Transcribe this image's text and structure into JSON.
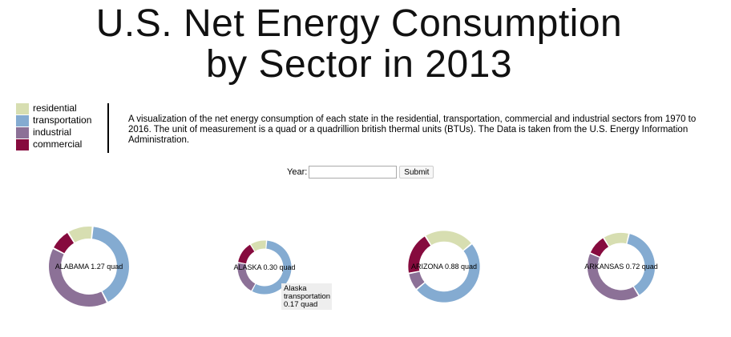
{
  "title": {
    "line1": "U.S. Net Energy Consumption",
    "line2": "by Sector in 2013"
  },
  "legend": [
    {
      "label": "residential",
      "color": "#d7deb1"
    },
    {
      "label": "transportation",
      "color": "#84abd1"
    },
    {
      "label": "industrial",
      "color": "#8c7197"
    },
    {
      "label": "commercial",
      "color": "#860b3e"
    }
  ],
  "description": "A visualization of the net energy consumption of each state in the residential, transportation, commercial and industrial sectors from 1970 to 2016. The unit of measurement is a quad or a quadrillion british thermal units (BTUs). The Data is taken from the U.S. Energy Information Administration.",
  "form": {
    "year_label": "Year:",
    "year_value": "",
    "submit_label": "Submit"
  },
  "tooltip": {
    "state": "Alaska",
    "sector": "transportation",
    "value": "0.17 quad"
  },
  "chart_data": {
    "type": "pie",
    "variant": "donut",
    "year": 2013,
    "unit": "quad",
    "sectors": [
      "residential",
      "transportation",
      "industrial",
      "commercial"
    ],
    "colors": {
      "residential": "#d7deb1",
      "transportation": "#84abd1",
      "industrial": "#8c7197",
      "commercial": "#860b3e"
    },
    "states": [
      {
        "name": "ALABAMA",
        "label": "ALABAMA 1.27 quad",
        "total": 1.27,
        "values": [
          0.13,
          0.52,
          0.51,
          0.11
        ]
      },
      {
        "name": "ALASKA",
        "label": "ALASKA 0.30 quad",
        "total": 0.3,
        "values": [
          0.03,
          0.17,
          0.06,
          0.04
        ]
      },
      {
        "name": "ARIZONA",
        "label": "ARIZONA 0.88 quad",
        "total": 0.88,
        "values": [
          0.2,
          0.44,
          0.07,
          0.17
        ]
      },
      {
        "name": "ARKANSAS",
        "label": "ARKANSAS 0.72 quad",
        "total": 0.72,
        "values": [
          0.09,
          0.27,
          0.29,
          0.07
        ]
      }
    ]
  }
}
